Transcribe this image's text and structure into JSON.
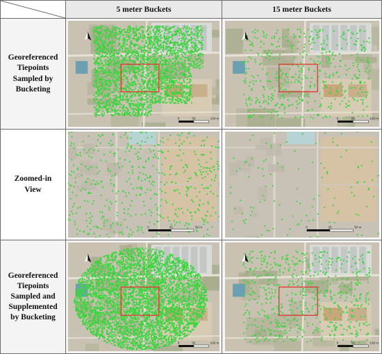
{
  "column_headers": [
    "5 meter Buckets",
    "15 meter Buckets"
  ],
  "row_labels": [
    "Georeferenced\nTiepoints\nSampled by\nBucketing",
    "Zoomed-in\nView",
    "Georeferenced\nTiepoints\nSampled and\nSupplemented\nby Bucketing"
  ],
  "scale_labels": {
    "overview_zero": "0",
    "overview_mid": "50",
    "overview_max": "100 m",
    "zoom_zero": "0",
    "zoom_mid": "25",
    "zoom_max": "50 m"
  },
  "north_arrow_icon": "north-arrow-icon",
  "colors": {
    "tiepoint": "#3fd43f",
    "focus_box": "#e0392b",
    "header_bg": "#e9e9e9",
    "border": "#6b6b6b"
  }
}
